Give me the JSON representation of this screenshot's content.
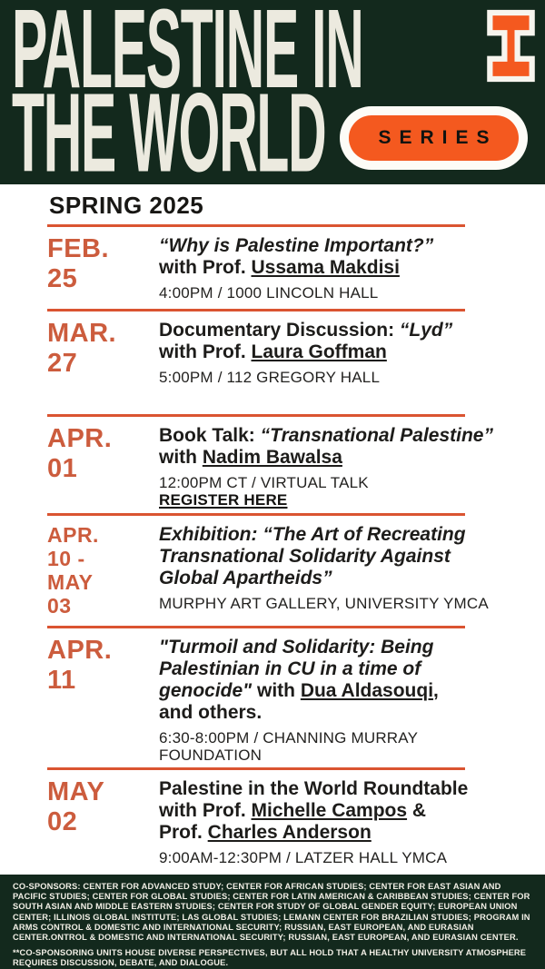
{
  "header": {
    "title_line1": "PALESTINE IN",
    "title_line2": "THE WORLD",
    "series_label": "SERIES",
    "logo": "illinois-block-i-logo"
  },
  "season_heading": "SPRING 2025",
  "events": [
    {
      "date_lines": [
        "FEB.",
        "25"
      ],
      "title_segments": [
        {
          "t": "“Why is Palestine Important?”",
          "st": "i",
          "name": "event-title-text"
        },
        {
          "t": "\nwith Prof. ",
          "st": "",
          "name": "event-title-text"
        },
        {
          "t": "Ussama Makdisi",
          "st": "u",
          "name": "speaker-name"
        }
      ],
      "detail_lines": [
        {
          "t": "4:00PM / 1000 LINCOLN HALL",
          "st": "",
          "name": "event-time-location"
        }
      ]
    },
    {
      "date_lines": [
        "MAR.",
        "27"
      ],
      "title_segments": [
        {
          "t": "Documentary  Discussion: ",
          "st": "",
          "name": "event-title-text"
        },
        {
          "t": "“Lyd”",
          "st": "i",
          "name": "event-title-text"
        },
        {
          "t": "\nwith Prof. ",
          "st": "",
          "name": "event-title-text"
        },
        {
          "t": "Laura Goffman",
          "st": "u",
          "name": "speaker-name"
        }
      ],
      "detail_lines": [
        {
          "t": "5:00PM / 112 GREGORY HALL",
          "st": "",
          "name": "event-time-location"
        }
      ]
    },
    {
      "date_lines": [
        "APR.",
        "01"
      ],
      "title_segments": [
        {
          "t": "Book Talk: ",
          "st": "",
          "name": "event-title-text"
        },
        {
          "t": "“Transnational Palestine”",
          "st": "i",
          "name": "event-title-text"
        },
        {
          "t": "\nwith ",
          "st": "",
          "name": "event-title-text"
        },
        {
          "t": "Nadim Bawalsa",
          "st": "u",
          "name": "speaker-name"
        }
      ],
      "detail_lines": [
        {
          "t": "12:00PM CT / VIRTUAL TALK",
          "st": "",
          "name": "event-time-location"
        },
        {
          "t": "REGISTER HERE",
          "st": "link",
          "name": "register-link"
        }
      ]
    },
    {
      "date_lines": [
        "APR.",
        "10 -",
        "MAY",
        "03"
      ],
      "title_segments": [
        {
          "t": "Exhibition: “The Art of Recreating\nTransnational Solidarity Against\nGlobal Apartheids”",
          "st": "i",
          "name": "event-title-text"
        }
      ],
      "detail_lines": [
        {
          "t": "MURPHY ART GALLERY, UNIVERSITY YMCA",
          "st": "",
          "name": "event-time-location"
        }
      ]
    },
    {
      "date_lines": [
        "APR.",
        "11"
      ],
      "title_segments": [
        {
          "t": "\"Turmoil and Solidarity: Being\nPalestinian in CU in a time of\ngenocide\" ",
          "st": "i",
          "name": "event-title-text"
        },
        {
          "t": " with ",
          "st": "",
          "name": "event-title-text"
        },
        {
          "t": "Dua Aldasouqi",
          "st": "u",
          "name": "speaker-name"
        },
        {
          "t": ",\nand others.",
          "st": "",
          "name": "event-title-text"
        }
      ],
      "detail_lines": [
        {
          "t": "6:30-8:00PM / CHANNING MURRAY\nFOUNDATION",
          "st": "",
          "name": "event-time-location"
        }
      ]
    },
    {
      "date_lines": [
        "MAY",
        "02"
      ],
      "title_segments": [
        {
          "t": "Palestine in the World Roundtable\nwith Prof. ",
          "st": "",
          "name": "event-title-text"
        },
        {
          "t": "Michelle Campos",
          "st": "u",
          "name": "speaker-name"
        },
        {
          "t": " &\nProf. ",
          "st": "",
          "name": "event-title-text"
        },
        {
          "t": "Charles Anderson",
          "st": "u",
          "name": "speaker-name"
        }
      ],
      "detail_lines": [
        {
          "t": "9:00AM-12:30PM /  LATZER HALL YMCA",
          "st": "",
          "name": "event-time-location"
        }
      ]
    }
  ],
  "footer": {
    "cosponsors": "CO-SPONSORS: CENTER FOR ADVANCED STUDY; CENTER FOR AFRICAN STUDIES; CENTER FOR EAST ASIAN AND PACIFIC STUDIES; CENTER FOR GLOBAL STUDIES; CENTER FOR LATIN AMERICAN & CARIBBEAN STUDIES; CENTER FOR SOUTH ASIAN AND MIDDLE EASTERN STUDIES; CENTER FOR STUDY OF GLOBAL GENDER EQUITY; EUROPEAN UNION CENTER; ILLINOIS GLOBAL INSTITUTE; LAS GLOBAL STUDIES; LEMANN CENTER FOR BRAZILIAN STUDIES; PROGRAM IN ARMS CONTROL & DOMESTIC AND INTERNATIONAL SECURITY; RUSSIAN, EAST EUROPEAN, AND EURASIAN CENTER.ONTROL & DOMESTIC AND INTERNATIONAL SECURITY; RUSSIAN, EAST EUROPEAN, AND EURASIAN CENTER.",
    "note": "**CO-SPONSORING UNITS HOUSE DIVERSE PERSPECTIVES, BUT ALL HOLD THAT A HEALTHY UNIVERSITY ATMOSPHERE REQUIRES DISCUSSION, DEBATE, AND DIALOGUE."
  },
  "colors": {
    "dark_green": "#13291d",
    "cream": "#eceadf",
    "brand_orange": "#f4591f",
    "date_orange": "#cc5c3d",
    "rule_orange": "#da5431",
    "text_black": "#1d1c1a"
  }
}
